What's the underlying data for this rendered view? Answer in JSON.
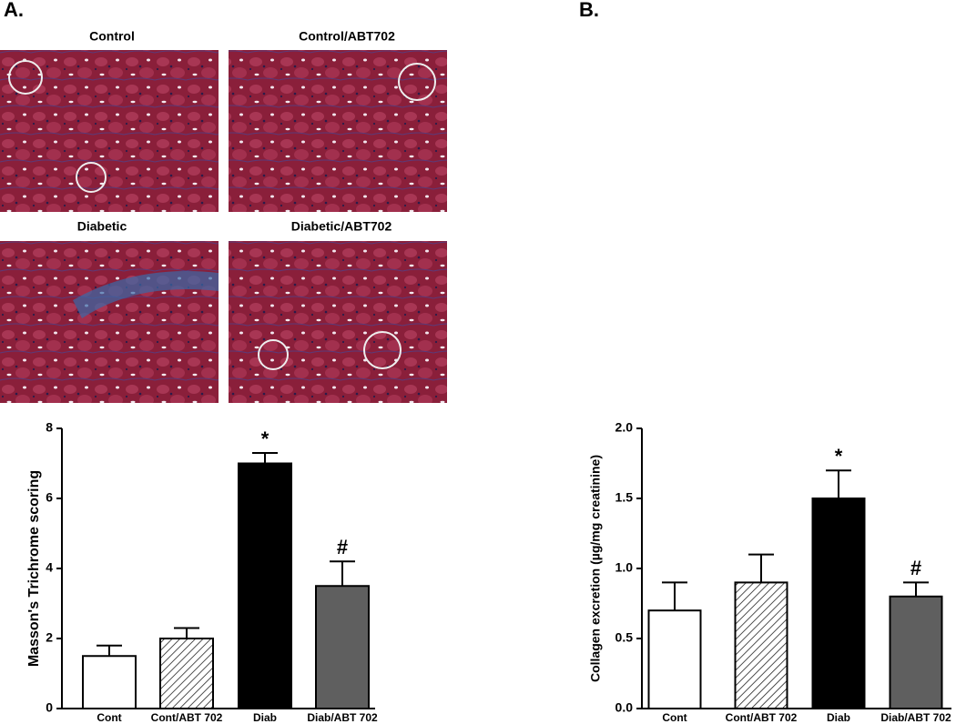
{
  "figure": {
    "panel_labels": [
      "A.",
      "B."
    ],
    "image_labels": [
      "Control",
      "Control/ABT702",
      "Diabetic",
      "Diabetic/ABT702"
    ]
  },
  "chart_data": [
    {
      "type": "bar",
      "ylabel": "Masson's Trichrome scoring",
      "categories": [
        "Cont",
        "Cont/ABT 702",
        "Diab",
        "Diab/ABT 702"
      ],
      "values": [
        1.5,
        2.0,
        7.0,
        3.5
      ],
      "errors": [
        0.3,
        0.3,
        0.3,
        0.7
      ],
      "colors": [
        "#ffffff",
        "#ffffff",
        "#000000",
        "#5f5f5f"
      ],
      "hatch": [
        false,
        true,
        false,
        false
      ],
      "bar_labels": [
        null,
        null,
        "*",
        "#"
      ],
      "ylim": [
        0,
        8
      ],
      "yticks": [
        0,
        2,
        4,
        6,
        8
      ],
      "grid": false
    },
    {
      "type": "bar",
      "ylabel": "Collagen excretion (µg/mg creatinine)",
      "categories": [
        "Cont",
        "Cont/ABT 702",
        "Diab",
        "Diab/ABT 702"
      ],
      "values": [
        0.7,
        0.9,
        1.5,
        0.8
      ],
      "errors": [
        0.2,
        0.2,
        0.2,
        0.1
      ],
      "colors": [
        "#ffffff",
        "#ffffff",
        "#000000",
        "#5f5f5f"
      ],
      "hatch": [
        false,
        true,
        false,
        false
      ],
      "bar_labels": [
        null,
        null,
        "*",
        "#"
      ],
      "ylim": [
        0,
        2.0
      ],
      "yticks": [
        {
          "value": 0,
          "label": "0.0"
        },
        {
          "value": 0.5,
          "label": "0.5"
        },
        {
          "value": 1.0,
          "label": "1.0"
        },
        {
          "value": 1.5,
          "label": "1.5"
        },
        {
          "value": 2.0,
          "label": "2.0"
        }
      ],
      "grid": false
    }
  ]
}
